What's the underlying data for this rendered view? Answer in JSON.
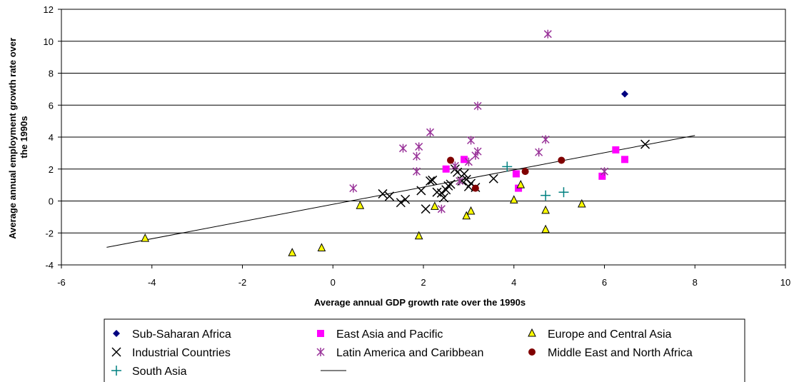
{
  "chart_data": {
    "type": "scatter",
    "title": "",
    "xlabel": "Average annual GDP growth rate over the 1990s",
    "ylabel_lines": [
      "Average annual employment growth rate over",
      "the 1990s"
    ],
    "xlim": [
      -6,
      10
    ],
    "ylim": [
      -4,
      12
    ],
    "xticks": [
      -6,
      -4,
      -2,
      0,
      2,
      4,
      6,
      8,
      10
    ],
    "yticks": [
      -4,
      -2,
      0,
      2,
      4,
      6,
      8,
      10,
      12
    ],
    "grid": "horizontal",
    "legend_position": "bottom",
    "series": [
      {
        "name": "Sub-Saharan Africa",
        "marker": "diamond",
        "color": "#000080",
        "points": [
          [
            6.45,
            6.7
          ]
        ]
      },
      {
        "name": "East Asia and Pacific",
        "marker": "square",
        "color": "#FF00FF",
        "points": [
          [
            2.5,
            2.0
          ],
          [
            2.9,
            2.6
          ],
          [
            4.05,
            1.7
          ],
          [
            4.1,
            0.8
          ],
          [
            5.95,
            1.55
          ],
          [
            6.25,
            3.2
          ],
          [
            6.45,
            2.6
          ]
        ]
      },
      {
        "name": "Europe and Central Asia",
        "marker": "triangle",
        "color": "#FFFF00",
        "points": [
          [
            -4.15,
            -2.35
          ],
          [
            -0.9,
            -3.25
          ],
          [
            -0.25,
            -2.95
          ],
          [
            0.6,
            -0.3
          ],
          [
            1.9,
            -2.2
          ],
          [
            2.25,
            -0.35
          ],
          [
            2.95,
            -0.95
          ],
          [
            3.05,
            -0.65
          ],
          [
            4.0,
            0.05
          ],
          [
            4.15,
            1.0
          ],
          [
            4.7,
            -0.6
          ],
          [
            4.7,
            -1.8
          ],
          [
            5.5,
            -0.2
          ]
        ]
      },
      {
        "name": "Industrial Countries",
        "marker": "x",
        "color": "#000000",
        "points": [
          [
            1.1,
            0.45
          ],
          [
            1.25,
            0.3
          ],
          [
            1.5,
            -0.1
          ],
          [
            1.6,
            0.1
          ],
          [
            1.95,
            0.65
          ],
          [
            2.05,
            -0.5
          ],
          [
            2.15,
            1.25
          ],
          [
            2.2,
            1.3
          ],
          [
            2.3,
            0.55
          ],
          [
            2.4,
            0.5
          ],
          [
            2.5,
            0.7
          ],
          [
            2.55,
            0.95
          ],
          [
            2.6,
            1.05
          ],
          [
            2.7,
            2.0
          ],
          [
            2.75,
            1.8
          ],
          [
            2.9,
            1.7
          ],
          [
            2.95,
            1.35
          ],
          [
            3.0,
            0.9
          ],
          [
            3.05,
            1.1
          ],
          [
            3.15,
            0.85
          ],
          [
            3.55,
            1.4
          ],
          [
            2.45,
            0.2
          ],
          [
            2.85,
            1.25
          ],
          [
            6.9,
            3.55
          ]
        ]
      },
      {
        "name": "Latin America and Caribbean",
        "marker": "asterisk",
        "color": "#993399",
        "points": [
          [
            0.45,
            0.8
          ],
          [
            1.55,
            3.3
          ],
          [
            1.85,
            1.85
          ],
          [
            1.85,
            2.8
          ],
          [
            1.9,
            3.4
          ],
          [
            2.15,
            4.3
          ],
          [
            2.4,
            -0.5
          ],
          [
            2.7,
            2.2
          ],
          [
            2.8,
            1.25
          ],
          [
            3.0,
            2.45
          ],
          [
            3.05,
            3.8
          ],
          [
            3.15,
            2.85
          ],
          [
            3.2,
            3.1
          ],
          [
            3.2,
            5.95
          ],
          [
            4.55,
            3.05
          ],
          [
            4.7,
            3.85
          ],
          [
            4.75,
            10.45
          ],
          [
            6.0,
            1.85
          ]
        ]
      },
      {
        "name": "Middle East and North Africa",
        "marker": "circle",
        "color": "#800000",
        "points": [
          [
            2.6,
            2.55
          ],
          [
            3.15,
            0.8
          ],
          [
            4.25,
            1.85
          ],
          [
            5.05,
            2.55
          ]
        ]
      },
      {
        "name": "South Asia",
        "marker": "plus",
        "color": "#008080",
        "points": [
          [
            3.85,
            2.15
          ],
          [
            4.7,
            0.35
          ],
          [
            5.1,
            0.55
          ]
        ]
      }
    ],
    "trendline": {
      "x": [
        -5,
        8
      ],
      "y": [
        -2.9,
        4.1
      ]
    }
  },
  "legend": [
    {
      "label": "Sub-Saharan Africa",
      "marker": "diamond",
      "color": "#000080"
    },
    {
      "label": "East Asia and Pacific",
      "marker": "square",
      "color": "#FF00FF"
    },
    {
      "label": "Europe and Central Asia",
      "marker": "triangle",
      "color": "#FFFF00"
    },
    {
      "label": "Industrial Countries",
      "marker": "x",
      "color": "#000000"
    },
    {
      "label": "Latin America and Caribbean",
      "marker": "asterisk",
      "color": "#993399"
    },
    {
      "label": "Middle East and North Africa",
      "marker": "circle",
      "color": "#800000"
    },
    {
      "label": "South Asia",
      "marker": "plus",
      "color": "#008080"
    },
    {
      "label": "",
      "marker": "line",
      "color": "#000000"
    }
  ]
}
